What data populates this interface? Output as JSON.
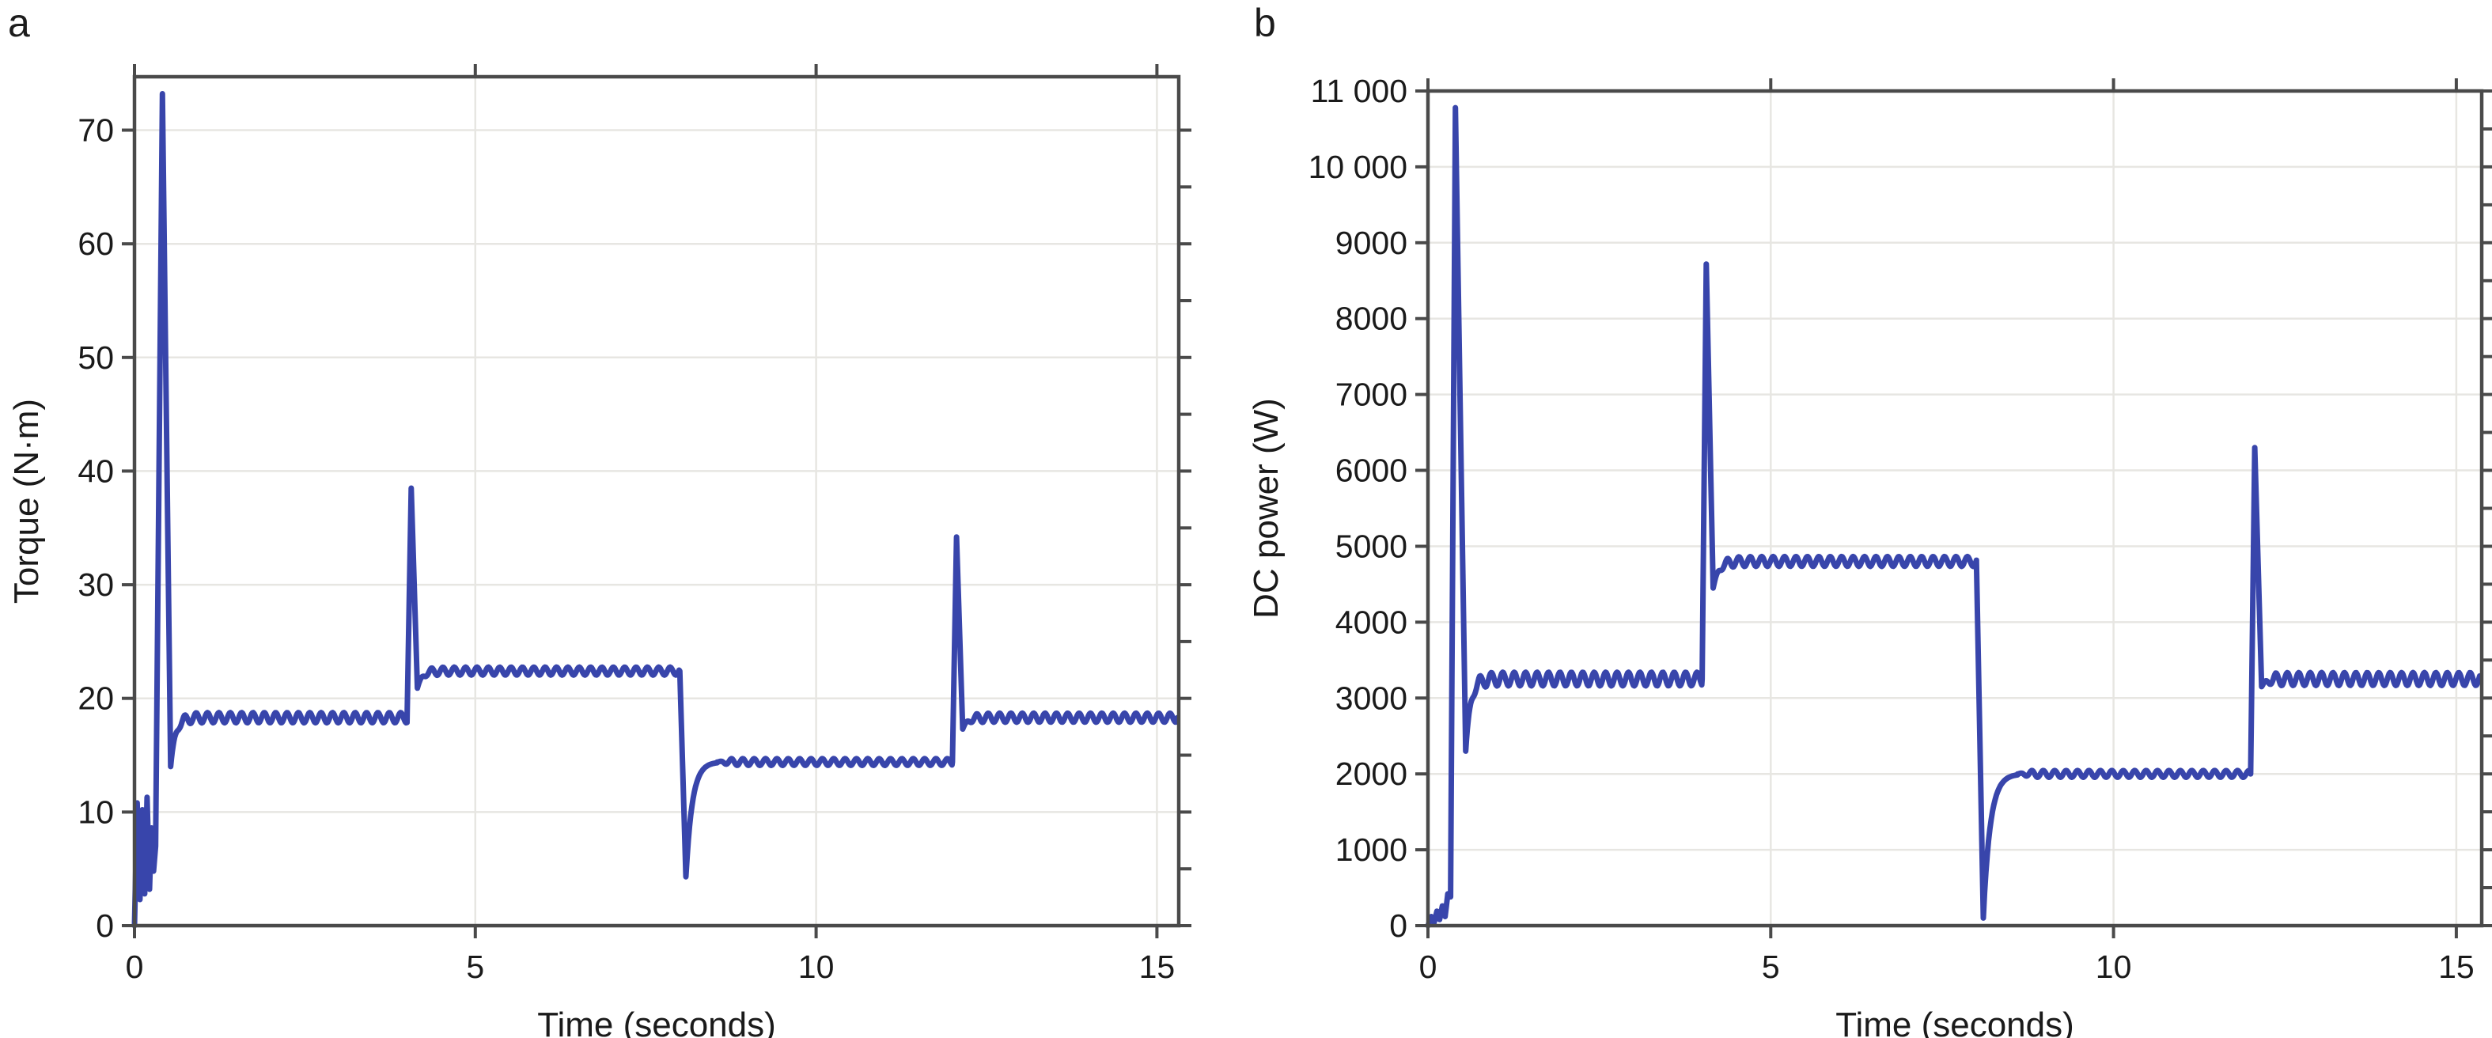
{
  "figure": {
    "background_color": "#ffffff",
    "text_color": "#1a1a1a"
  },
  "chart_data": [
    {
      "type": "line",
      "corner_label": "a",
      "xlabel": "Time (seconds)",
      "ylabel": "Torque (N·m)",
      "xlim": [
        0,
        15.32
      ],
      "ylim": [
        0,
        74.7
      ],
      "xticks": {
        "values": [
          0,
          5,
          10,
          15
        ],
        "labels": [
          "0",
          "5",
          "10",
          "15"
        ]
      },
      "yticks": {
        "values": [
          0,
          10,
          20,
          30,
          40,
          50,
          60,
          70
        ],
        "labels": [
          "0",
          "10",
          "20",
          "30",
          "40",
          "50",
          "60",
          "70"
        ]
      },
      "top_tick_values": [
        0,
        5,
        10,
        15
      ],
      "right_tick_step": 5,
      "grid": true,
      "legend": "none",
      "line_color": "#3845ab",
      "axis_color": "#4a4a4a",
      "grid_color": "#e7e6e2",
      "line_width": 7,
      "steady_levels": [
        18.3,
        22.4,
        14.4,
        18.3
      ],
      "peaks": [
        [
          0.41,
          73.2
        ],
        [
          4.06,
          38.5
        ],
        [
          12.06,
          34.2
        ]
      ],
      "dip_bottom": [
        8.1,
        4.3
      ],
      "segments": [
        {
          "type": "poly",
          "pts": [
            [
              0,
              0
            ],
            [
              0.04,
              10.8
            ],
            [
              0.08,
              2.3
            ],
            [
              0.115,
              10.2
            ],
            [
              0.15,
              2.8
            ],
            [
              0.185,
              11.3
            ],
            [
              0.22,
              3.2
            ],
            [
              0.25,
              8.6
            ],
            [
              0.28,
              4.8
            ],
            [
              0.31,
              7.0
            ]
          ]
        },
        {
          "type": "spike",
          "t0": 0.31,
          "v0": 7.0,
          "tp": 0.41,
          "peak": 73.2,
          "t1": 0.53,
          "v1": 14.0
        },
        {
          "type": "settle",
          "t0": 0.53,
          "v0": 14.0,
          "t1": 4.0,
          "level": 18.3,
          "tau": 0.07,
          "ripple": 0.45,
          "freq": 6
        },
        {
          "type": "spike",
          "t0": 4.0,
          "v0": 18.3,
          "tp": 4.06,
          "peak": 38.5,
          "t1": 4.15,
          "v1": 20.9
        },
        {
          "type": "settle",
          "t0": 4.15,
          "v0": 20.9,
          "t1": 8.0,
          "level": 22.4,
          "tau": 0.07,
          "ripple": 0.35,
          "freq": 6
        },
        {
          "type": "dip",
          "t0": 8.0,
          "v0": 22.4,
          "tb": 8.09,
          "bottom": 4.3,
          "t1": 8.55,
          "v1": 14.4,
          "k": 5
        },
        {
          "type": "settle",
          "t0": 8.55,
          "v0": 14.4,
          "t1": 12.0,
          "level": 14.4,
          "tau": 0.05,
          "ripple": 0.3,
          "freq": 6
        },
        {
          "type": "spike",
          "t0": 12.0,
          "v0": 14.4,
          "tp": 12.06,
          "peak": 34.2,
          "t1": 12.15,
          "v1": 17.3
        },
        {
          "type": "settle",
          "t0": 12.15,
          "v0": 17.3,
          "t1": 15.3,
          "level": 18.3,
          "tau": 0.07,
          "ripple": 0.4,
          "freq": 6
        }
      ]
    },
    {
      "type": "line",
      "corner_label": "b",
      "xlabel": "Time (seconds)",
      "ylabel": "DC power (W)",
      "xlim": [
        0,
        15.37
      ],
      "ylim": [
        0,
        11000
      ],
      "xticks": {
        "values": [
          0,
          5,
          10,
          15
        ],
        "labels": [
          "0",
          "5",
          "10",
          "15"
        ]
      },
      "yticks": {
        "values": [
          0,
          1000,
          2000,
          3000,
          4000,
          5000,
          6000,
          7000,
          8000,
          9000,
          10000,
          11000
        ],
        "labels": [
          "0",
          "1000",
          "2000",
          "3000",
          "4000",
          "5000",
          "6000",
          "7000",
          "8000",
          "9000",
          "10 000",
          "11 000"
        ]
      },
      "top_tick_values": [
        0,
        5,
        10,
        15
      ],
      "right_tick_step": 500,
      "grid": true,
      "legend": "none",
      "line_color": "#3845ab",
      "axis_color": "#4a4a4a",
      "grid_color": "#e7e6e2",
      "line_width": 7,
      "steady_levels": [
        3250,
        4800,
        2000,
        3250
      ],
      "peaks": [
        [
          0.4,
          10780
        ],
        [
          4.06,
          8720
        ],
        [
          12.06,
          6300
        ]
      ],
      "dip_bottom": [
        8.1,
        100
      ],
      "segments": [
        {
          "type": "poly",
          "pts": [
            [
              0,
              0
            ],
            [
              0.05,
              120
            ],
            [
              0.09,
              40
            ],
            [
              0.13,
              190
            ],
            [
              0.17,
              80
            ],
            [
              0.21,
              260
            ],
            [
              0.25,
              120
            ],
            [
              0.29,
              420
            ],
            [
              0.33,
              380
            ]
          ]
        },
        {
          "type": "spike",
          "t0": 0.33,
          "v0": 380,
          "tp": 0.4,
          "peak": 10780,
          "t1": 0.55,
          "v1": 2300
        },
        {
          "type": "settle",
          "t0": 0.55,
          "v0": 2300,
          "t1": 4.0,
          "level": 3250,
          "tau": 0.07,
          "ripple": 90,
          "freq": 6
        },
        {
          "type": "spike",
          "t0": 4.0,
          "v0": 3250,
          "tp": 4.06,
          "peak": 8720,
          "t1": 4.16,
          "v1": 4450
        },
        {
          "type": "settle",
          "t0": 4.16,
          "v0": 4450,
          "t1": 8.0,
          "level": 4800,
          "tau": 0.08,
          "ripple": 65,
          "freq": 6
        },
        {
          "type": "dip",
          "t0": 8.0,
          "v0": 4800,
          "tb": 8.1,
          "bottom": 100,
          "t1": 8.6,
          "v1": 2000,
          "k": 5
        },
        {
          "type": "settle",
          "t0": 8.6,
          "v0": 2000,
          "t1": 12.0,
          "level": 2000,
          "tau": 0.05,
          "ripple": 45,
          "freq": 6
        },
        {
          "type": "spike",
          "t0": 12.0,
          "v0": 2000,
          "tp": 12.06,
          "peak": 6300,
          "t1": 12.16,
          "v1": 3150
        },
        {
          "type": "settle",
          "t0": 12.16,
          "v0": 3150,
          "t1": 15.35,
          "level": 3250,
          "tau": 0.07,
          "ripple": 85,
          "freq": 6
        }
      ]
    }
  ]
}
